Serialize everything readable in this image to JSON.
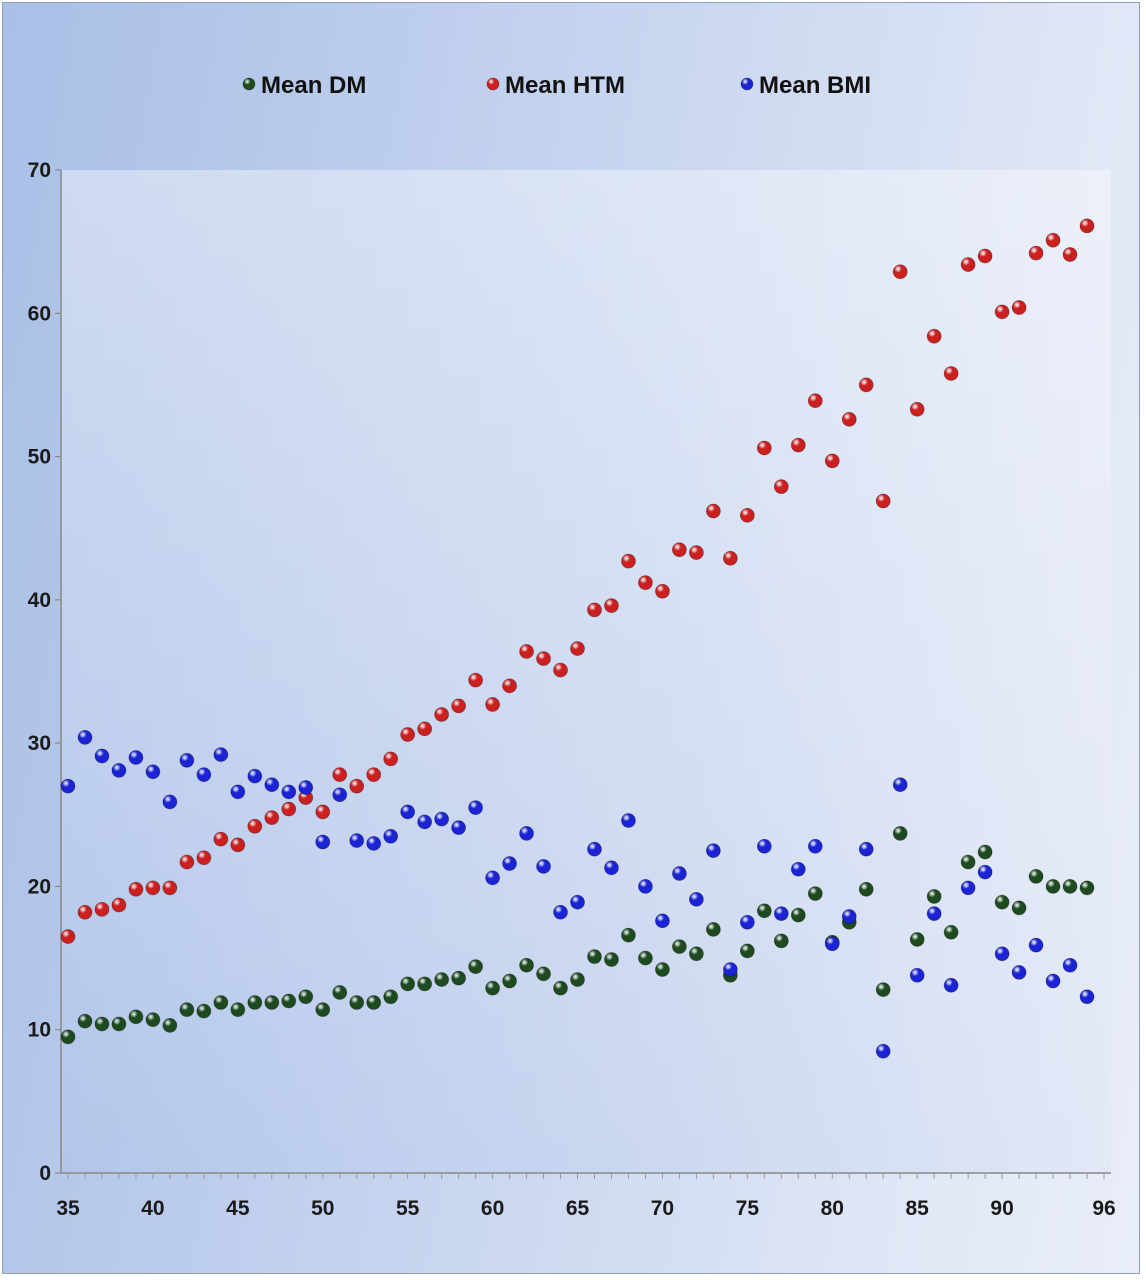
{
  "chart_data": {
    "type": "scatter",
    "title": "",
    "xlabel": "",
    "ylabel": "",
    "xlim": [
      35,
      96
    ],
    "ylim": [
      0,
      70
    ],
    "x_ticks": [
      35,
      40,
      45,
      50,
      55,
      60,
      65,
      70,
      75,
      80,
      85,
      90,
      96
    ],
    "y_ticks": [
      0,
      10,
      20,
      30,
      40,
      50,
      60,
      70
    ],
    "legend_position": "top",
    "grid": false,
    "x": [
      35,
      36,
      37,
      38,
      39,
      40,
      41,
      42,
      43,
      44,
      45,
      46,
      47,
      48,
      49,
      50,
      51,
      52,
      53,
      54,
      55,
      56,
      57,
      58,
      59,
      60,
      61,
      62,
      63,
      64,
      65,
      66,
      67,
      68,
      69,
      70,
      71,
      72,
      73,
      74,
      75,
      76,
      77,
      78,
      79,
      80,
      81,
      82,
      83,
      84,
      85,
      86,
      87,
      88,
      89,
      90,
      91,
      92,
      93,
      94,
      95
    ],
    "series": [
      {
        "name": "Mean DM",
        "color": "#1d4a1f",
        "values": [
          9.5,
          10.6,
          10.4,
          10.4,
          10.9,
          10.7,
          10.3,
          11.4,
          11.3,
          11.9,
          11.4,
          11.9,
          11.9,
          12.0,
          12.3,
          11.4,
          12.6,
          11.9,
          11.9,
          12.3,
          13.2,
          13.2,
          13.5,
          13.6,
          14.4,
          12.9,
          13.4,
          14.5,
          13.9,
          12.9,
          13.5,
          15.1,
          14.9,
          16.6,
          15.0,
          14.2,
          15.8,
          15.3,
          17.0,
          13.8,
          15.5,
          18.3,
          16.2,
          18.0,
          19.5,
          16.1,
          17.5,
          19.8,
          12.8,
          23.7,
          16.3,
          19.3,
          16.8,
          21.7,
          22.4,
          18.9,
          18.5,
          20.7,
          20.0,
          20.0,
          19.9
        ]
      },
      {
        "name": "Mean HTM",
        "color": "#cc1f1f",
        "values": [
          16.5,
          18.2,
          18.4,
          18.7,
          19.8,
          19.9,
          19.9,
          21.7,
          22.0,
          23.3,
          22.9,
          24.2,
          24.8,
          25.4,
          26.2,
          25.2,
          27.8,
          27.0,
          27.8,
          28.9,
          30.6,
          31.0,
          32.0,
          32.6,
          34.4,
          32.7,
          34.0,
          36.4,
          35.9,
          35.1,
          36.6,
          39.3,
          39.6,
          42.7,
          41.2,
          40.6,
          43.5,
          43.3,
          46.2,
          42.9,
          45.9,
          50.6,
          47.9,
          50.8,
          53.9,
          49.7,
          52.6,
          55.0,
          46.9,
          62.9,
          53.3,
          58.4,
          55.8,
          63.4,
          64.0,
          60.1,
          60.4,
          64.2,
          65.1,
          64.1,
          66.1
        ]
      },
      {
        "name": "Mean BMI",
        "color": "#1a24d4",
        "values": [
          27.0,
          30.4,
          29.1,
          28.1,
          29.0,
          28.0,
          25.9,
          28.8,
          27.8,
          29.2,
          26.6,
          27.7,
          27.1,
          26.6,
          26.9,
          23.1,
          26.4,
          23.2,
          23.0,
          23.5,
          25.2,
          24.5,
          24.7,
          24.1,
          25.5,
          20.6,
          21.6,
          23.7,
          21.4,
          18.2,
          18.9,
          22.6,
          21.3,
          24.6,
          20.0,
          17.6,
          20.9,
          19.1,
          22.5,
          14.2,
          17.5,
          22.8,
          18.1,
          21.2,
          22.8,
          16.0,
          17.9,
          22.6,
          8.5,
          27.1,
          13.8,
          18.1,
          13.1,
          19.9,
          21.0,
          15.3,
          14.0,
          15.9,
          13.4,
          14.5,
          12.3
        ]
      }
    ]
  }
}
